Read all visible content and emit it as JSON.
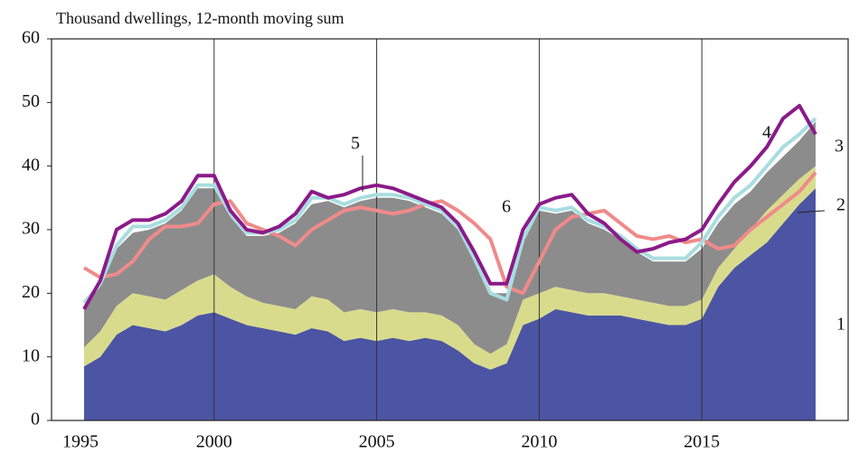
{
  "chart_data": {
    "type": "area",
    "subtitle": "Thousand dwellings, 12-month moving sum",
    "x": [
      1996,
      1996.5,
      1997,
      1997.5,
      1998,
      1998.5,
      1999,
      1999.5,
      2000,
      2000.5,
      2001,
      2001.5,
      2002,
      2002.5,
      2003,
      2003.5,
      2004,
      2004.5,
      2005,
      2005.5,
      2006,
      2006.5,
      2007,
      2007.5,
      2008,
      2008.5,
      2009,
      2009.5,
      2010,
      2010.5,
      2011,
      2011.5,
      2012,
      2012.5,
      2013,
      2013.5,
      2014,
      2014.5,
      2015,
      2015.5,
      2016,
      2016.5,
      2017,
      2017.5,
      2018,
      2018.5
    ],
    "xlim": [
      1995,
      2019.5
    ],
    "xticks": [
      1995,
      2000,
      2005,
      2010,
      2015
    ],
    "ylim": [
      0,
      60
    ],
    "yticks": [
      0,
      10,
      20,
      30,
      40,
      50,
      60
    ],
    "grid": "x",
    "series": [
      {
        "name": "1",
        "type": "area",
        "color": "#4b55a3",
        "values": [
          8.5,
          10,
          13.5,
          15,
          14.5,
          14,
          15,
          16.5,
          17,
          16,
          15,
          14.5,
          14,
          13.5,
          14.5,
          14,
          12.5,
          13,
          12.5,
          13,
          12.5,
          13,
          12.5,
          11,
          9,
          8,
          9,
          15,
          16,
          17.5,
          17,
          16.5,
          16.5,
          16.5,
          16,
          15.5,
          15,
          15,
          16,
          21,
          24,
          26,
          28,
          31,
          34,
          36.5
        ]
      },
      {
        "name": "2",
        "type": "area",
        "color": "#d9db8c",
        "values": [
          3,
          4,
          4.5,
          5,
          5,
          5,
          5.5,
          5.5,
          6,
          5,
          4.5,
          4,
          4,
          4,
          5,
          5,
          4.5,
          4.5,
          4.5,
          4.5,
          4.5,
          4,
          4,
          4,
          3,
          2.5,
          3,
          4,
          4,
          3.5,
          3.5,
          3.5,
          3.5,
          3,
          3,
          3,
          3,
          3,
          3,
          3,
          3,
          4,
          5,
          4.5,
          4,
          3.5
        ]
      },
      {
        "name": "3",
        "type": "area",
        "color": "#8c8c8c",
        "values": [
          6.5,
          7,
          9,
          9.5,
          10.5,
          12,
          12.5,
          14.5,
          13.5,
          11,
          9.5,
          10.5,
          11.5,
          13.5,
          14.5,
          15.5,
          16.5,
          17,
          18,
          17.5,
          17.5,
          16.5,
          16,
          15,
          13,
          9.5,
          8,
          10,
          13,
          11.5,
          12.5,
          11,
          10,
          9,
          7.5,
          6.5,
          7,
          7,
          8,
          7,
          7,
          6,
          6,
          6,
          6,
          7
        ]
      },
      {
        "name": "4",
        "type": "line",
        "color": "#8b1a89",
        "values": [
          17.5,
          22,
          30,
          31.5,
          31.5,
          32.5,
          34.5,
          38.5,
          38.5,
          33,
          30,
          29.5,
          30.5,
          32.5,
          36,
          35,
          35.5,
          36.5,
          37,
          36.5,
          35.5,
          34.5,
          33.5,
          31,
          26.5,
          21.5,
          21.5,
          30,
          34,
          35,
          35.5,
          32.5,
          31,
          28.5,
          26.5,
          27,
          28,
          28.5,
          30,
          34,
          37.5,
          40,
          43,
          47.5,
          49.5,
          45
        ]
      },
      {
        "name": "5",
        "type": "line",
        "color": "#a8dde0",
        "values": [
          18.5,
          21.5,
          27.5,
          30.5,
          30.5,
          31.5,
          33.5,
          37,
          37,
          32.5,
          29.5,
          29.5,
          30,
          31.5,
          35,
          35,
          34,
          35,
          35.5,
          35.5,
          35,
          34,
          33,
          30.5,
          25.5,
          20,
          19,
          28.5,
          33.5,
          33,
          33.5,
          31.5,
          30.5,
          29,
          27,
          25.5,
          25.5,
          25.5,
          28,
          32,
          35,
          37,
          40,
          43,
          45,
          47.5
        ]
      },
      {
        "name": "6",
        "type": "line",
        "color": "#f08a8a",
        "values": [
          24,
          22.5,
          23,
          25,
          28.5,
          30.5,
          30.5,
          31,
          34,
          34.5,
          31,
          30,
          29,
          27.5,
          30,
          31.5,
          33,
          33.5,
          33,
          32.5,
          33,
          34,
          34.5,
          33,
          31,
          28.5,
          21,
          20,
          25,
          30,
          32,
          32.5,
          33,
          31,
          29,
          28.5,
          29,
          28,
          28.5,
          27,
          27.5,
          30,
          32,
          34,
          36,
          39
        ]
      }
    ]
  }
}
